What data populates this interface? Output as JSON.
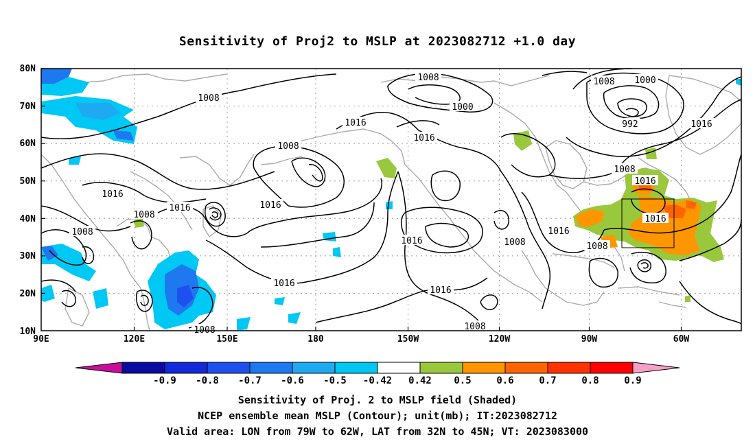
{
  "title": "Sensitivity of Proj2 to MSLP at 2023082712 +1.0 day",
  "lat_labels": [
    "80N",
    "70N",
    "60N",
    "50N",
    "40N",
    "30N",
    "20N",
    "10N"
  ],
  "lon_labels": [
    "90E",
    "120E",
    "150E",
    "180",
    "150W",
    "120W",
    "90W",
    "60W"
  ],
  "colorbar": {
    "labels": [
      "-0.9",
      "-0.8",
      "-0.7",
      "-0.6",
      "-0.5",
      "-0.42",
      "0.42",
      "0.5",
      "0.6",
      "0.7",
      "0.8",
      "0.9"
    ],
    "colors": [
      "#c80f9b",
      "#0a0aa0",
      "#1428dc",
      "#1e50f0",
      "#1e78f0",
      "#1eaaf0",
      "#00c8f5",
      "#ffffff",
      "#9ac83c",
      "#ff9600",
      "#ff6400",
      "#ff3200",
      "#ff0000",
      "#f5a0c8"
    ]
  },
  "contour_labels": [
    {
      "text": "1008"
    },
    {
      "text": "1016"
    },
    {
      "text": "1008"
    },
    {
      "text": "1016"
    },
    {
      "text": "1008"
    },
    {
      "text": "1008"
    },
    {
      "text": "1016"
    },
    {
      "text": "1016"
    },
    {
      "text": "1016"
    },
    {
      "text": "1008"
    },
    {
      "text": "1016"
    },
    {
      "text": "1008"
    },
    {
      "text": "1000"
    },
    {
      "text": "1016"
    },
    {
      "text": "1016"
    },
    {
      "text": "1008"
    },
    {
      "text": "1008"
    },
    {
      "text": "1016"
    },
    {
      "text": "1008"
    },
    {
      "text": "1000"
    },
    {
      "text": "992"
    },
    {
      "text": "1008"
    },
    {
      "text": "1016"
    },
    {
      "text": "1016"
    },
    {
      "text": "1008"
    },
    {
      "text": "1016"
    }
  ],
  "captions": [
    "Sensitivity of Proj. 2 to MSLP field (Shaded)",
    "NCEP ensemble mean MSLP (Contour); unit(mb); IT:2023082712",
    "Valid area: LON from 79W to 62W, LAT from 32N to 45N; VT: 2023083000"
  ]
}
